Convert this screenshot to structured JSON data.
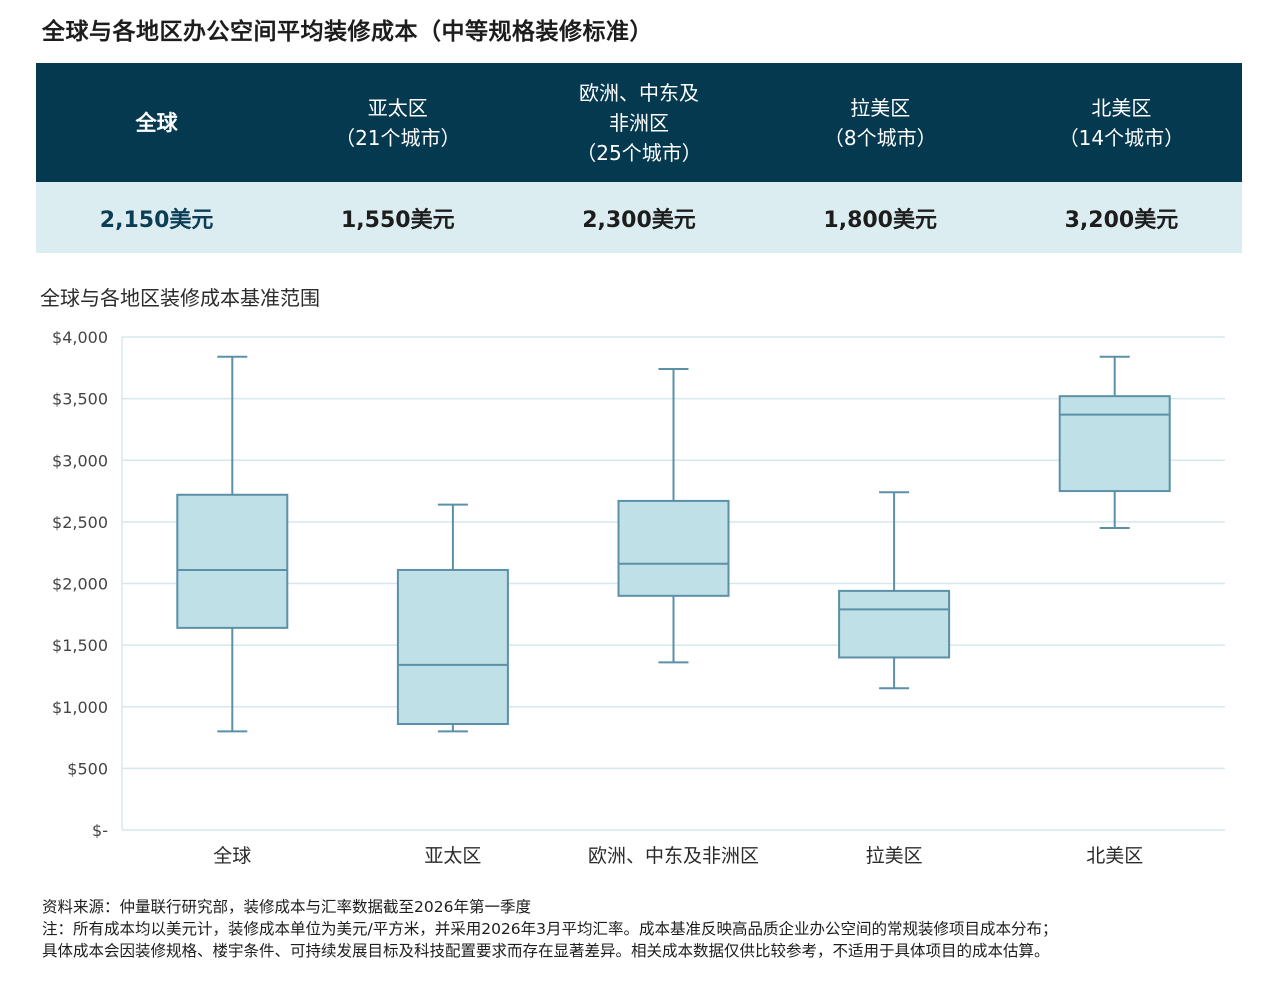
{
  "title": "全球与各地区办公空间平均装修成本（中等规格装修标准）",
  "summary": {
    "columns": [
      {
        "name": "全球",
        "sub": "",
        "value": "2,150美元",
        "highlight": true
      },
      {
        "name": "亚太区",
        "sub": "（21个城市）",
        "value": "1,550美元"
      },
      {
        "name": "欧洲、中东及\n非洲区",
        "sub": "（25个城市）",
        "value": "2,300美元"
      },
      {
        "name": "拉美区",
        "sub": "（8个城市）",
        "value": "1,800美元"
      },
      {
        "name": "北美区",
        "sub": "（14个城市）",
        "value": "3,200美元"
      }
    ]
  },
  "chart_subtitle": "全球与各地区装修成本基准范围",
  "chart_data": {
    "type": "box",
    "title": "全球与各地区装修成本基准范围",
    "categories": [
      "全球",
      "亚太区",
      "欧洲、中东及非洲区",
      "拉美区",
      "北美区"
    ],
    "boxes": [
      {
        "min": 800,
        "q1": 1640,
        "median": 2110,
        "q3": 2720,
        "max": 3840
      },
      {
        "min": 800,
        "q1": 860,
        "median": 1340,
        "q3": 2110,
        "max": 2640
      },
      {
        "min": 1360,
        "q1": 1900,
        "median": 2160,
        "q3": 2670,
        "max": 3740
      },
      {
        "min": 1150,
        "q1": 1400,
        "median": 1790,
        "q3": 1940,
        "max": 2740
      },
      {
        "min": 2450,
        "q1": 2750,
        "median": 3370,
        "q3": 3520,
        "max": 3840
      }
    ],
    "ylim": [
      0,
      4000
    ],
    "yticks": [
      0,
      500,
      1000,
      1500,
      2000,
      2500,
      3000,
      3500,
      4000
    ],
    "ytick_labels": [
      "$-",
      "$500",
      "$1,000",
      "$1,500",
      "$2,000",
      "$2,500",
      "$3,000",
      "$3,500",
      "$4,000"
    ],
    "grid": true,
    "box_color": "#bfe0e6",
    "line_color": "#5b90a8",
    "grid_color": "#d6e8ee"
  },
  "footnotes": [
    "资料来源：仲量联行研究部，装修成本与汇率数据截至2026年第一季度",
    "注：所有成本均以美元计，装修成本单位为美元/平方米，并采用2026年3月平均汇率。成本基准反映高品质企业办公空间的常规装修项目成本分布；",
    "具体成本会因装修规格、楼宇条件、可持续发展目标及科技配置要求而存在显著差异。相关成本数据仅供比较参考，不适用于具体项目的成本估算。"
  ]
}
